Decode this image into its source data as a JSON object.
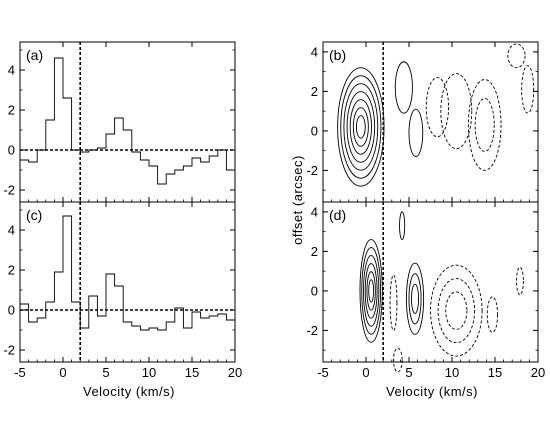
{
  "figure": {
    "left_xlabel": "Velocity  (km/s)",
    "right_xlabel": "Velocity  (km/s)",
    "right_ylabel": "offset  (arcsec)"
  },
  "chart_data": [
    {
      "id": "a",
      "type": "histogram",
      "panel_label": "(a)",
      "xlim": [
        -5,
        20
      ],
      "ylim": [
        -2.6,
        5.4
      ],
      "xticks": [
        -5,
        0,
        5,
        10,
        15,
        20
      ],
      "yticks": [
        -2,
        0,
        2,
        4
      ],
      "show_xtick_labels": false,
      "bin_edges": [
        -5.0,
        -4.0,
        -3.0,
        -2.0,
        -1.0,
        0.0,
        1.0,
        2.0,
        3.0,
        4.0,
        5.0,
        6.0,
        7.0,
        8.0,
        9.0,
        10.0,
        11.0,
        12.0,
        13.0,
        14.0,
        15.0,
        16.0,
        17.0,
        18.0,
        19.0,
        20.0
      ],
      "values": [
        -0.5,
        -0.6,
        0.0,
        1.5,
        4.6,
        2.6,
        0.0,
        -0.1,
        0.0,
        0.1,
        0.8,
        1.6,
        1.0,
        -0.1,
        -0.5,
        -0.8,
        -1.7,
        -1.2,
        -1.0,
        -0.8,
        -0.4,
        -0.6,
        -0.3,
        0.0,
        -1.0
      ],
      "baseline": 0,
      "marker_x": 2
    },
    {
      "id": "c",
      "type": "histogram",
      "panel_label": "(c)",
      "xlim": [
        -5,
        20
      ],
      "ylim": [
        -2.6,
        5.4
      ],
      "xticks": [
        -5,
        0,
        5,
        10,
        15,
        20
      ],
      "yticks": [
        -2,
        0,
        2,
        4
      ],
      "show_xtick_labels": true,
      "bin_edges": [
        -5.0,
        -4.0,
        -3.0,
        -2.0,
        -1.0,
        0.0,
        1.0,
        2.0,
        3.0,
        4.0,
        5.0,
        6.0,
        7.0,
        8.0,
        9.0,
        10.0,
        11.0,
        12.0,
        13.0,
        14.0,
        15.0,
        16.0,
        17.0,
        18.0,
        19.0,
        20.0
      ],
      "values": [
        0.3,
        -0.6,
        -0.4,
        0.4,
        1.9,
        4.7,
        0.4,
        -0.9,
        0.7,
        -0.3,
        1.8,
        1.2,
        -0.6,
        -0.8,
        -1.0,
        -0.9,
        -1.0,
        -0.6,
        0.1,
        -0.9,
        -0.1,
        -0.4,
        -0.3,
        -0.2,
        -0.5
      ],
      "baseline": 0,
      "marker_x": 2
    },
    {
      "id": "b",
      "type": "contour",
      "panel_label": "(b)",
      "xlim": [
        -5,
        20
      ],
      "ylim": [
        -3.6,
        4.5
      ],
      "xticks": [
        -5,
        0,
        5,
        10,
        15,
        20
      ],
      "yticks": [
        -2,
        0,
        2,
        4
      ],
      "show_xtick_labels": false,
      "marker_x": 2,
      "contours": [
        {
          "style": "solid",
          "cx": -0.6,
          "cy": 0.2,
          "rx": 2.7,
          "ry": 3.0,
          "levels": 7
        },
        {
          "style": "solid",
          "cx": 4.4,
          "cy": 2.2,
          "rx": 1.0,
          "ry": 1.3,
          "levels": 1
        },
        {
          "style": "solid",
          "cx": 5.8,
          "cy": -0.1,
          "rx": 0.8,
          "ry": 1.2,
          "levels": 1
        },
        {
          "style": "dashed",
          "cx": 8.3,
          "cy": 1.2,
          "rx": 1.3,
          "ry": 1.5,
          "levels": 1
        },
        {
          "style": "dashed",
          "cx": 10.5,
          "cy": 1.0,
          "rx": 1.8,
          "ry": 1.9,
          "levels": 1
        },
        {
          "style": "dashed",
          "cx": 13.8,
          "cy": 0.3,
          "rx": 1.9,
          "ry": 2.3,
          "levels": 2
        },
        {
          "style": "dashed",
          "cx": 17.5,
          "cy": 3.8,
          "rx": 1.0,
          "ry": 0.6,
          "levels": 1
        },
        {
          "style": "dashed",
          "cx": 18.8,
          "cy": 2.1,
          "rx": 0.7,
          "ry": 1.2,
          "levels": 1
        }
      ]
    },
    {
      "id": "d",
      "type": "contour",
      "panel_label": "(d)",
      "xlim": [
        -5,
        20
      ],
      "ylim": [
        -3.6,
        4.5
      ],
      "xticks": [
        -5,
        0,
        5,
        10,
        15,
        20
      ],
      "yticks": [
        -2,
        0,
        2,
        4
      ],
      "show_xtick_labels": true,
      "marker_x": 2,
      "contours": [
        {
          "style": "solid",
          "cx": 0.6,
          "cy": 0.0,
          "rx": 1.3,
          "ry": 2.6,
          "levels": 6
        },
        {
          "style": "solid",
          "cx": 4.2,
          "cy": 3.3,
          "rx": 0.3,
          "ry": 0.7,
          "levels": 1
        },
        {
          "style": "solid",
          "cx": 5.7,
          "cy": -0.4,
          "rx": 1.0,
          "ry": 1.8,
          "levels": 3
        },
        {
          "style": "dashed",
          "cx": 3.2,
          "cy": -0.6,
          "rx": 0.4,
          "ry": 1.4,
          "levels": 1
        },
        {
          "style": "dashed",
          "cx": 10.5,
          "cy": -1.0,
          "rx": 3.0,
          "ry": 2.3,
          "levels": 3
        },
        {
          "style": "dashed",
          "cx": 14.7,
          "cy": -1.2,
          "rx": 0.6,
          "ry": 0.9,
          "levels": 1
        },
        {
          "style": "dashed",
          "cx": 17.9,
          "cy": 0.5,
          "rx": 0.4,
          "ry": 0.7,
          "levels": 1
        },
        {
          "style": "dashed",
          "cx": 3.7,
          "cy": -3.5,
          "rx": 0.5,
          "ry": 0.6,
          "levels": 1
        }
      ]
    }
  ]
}
